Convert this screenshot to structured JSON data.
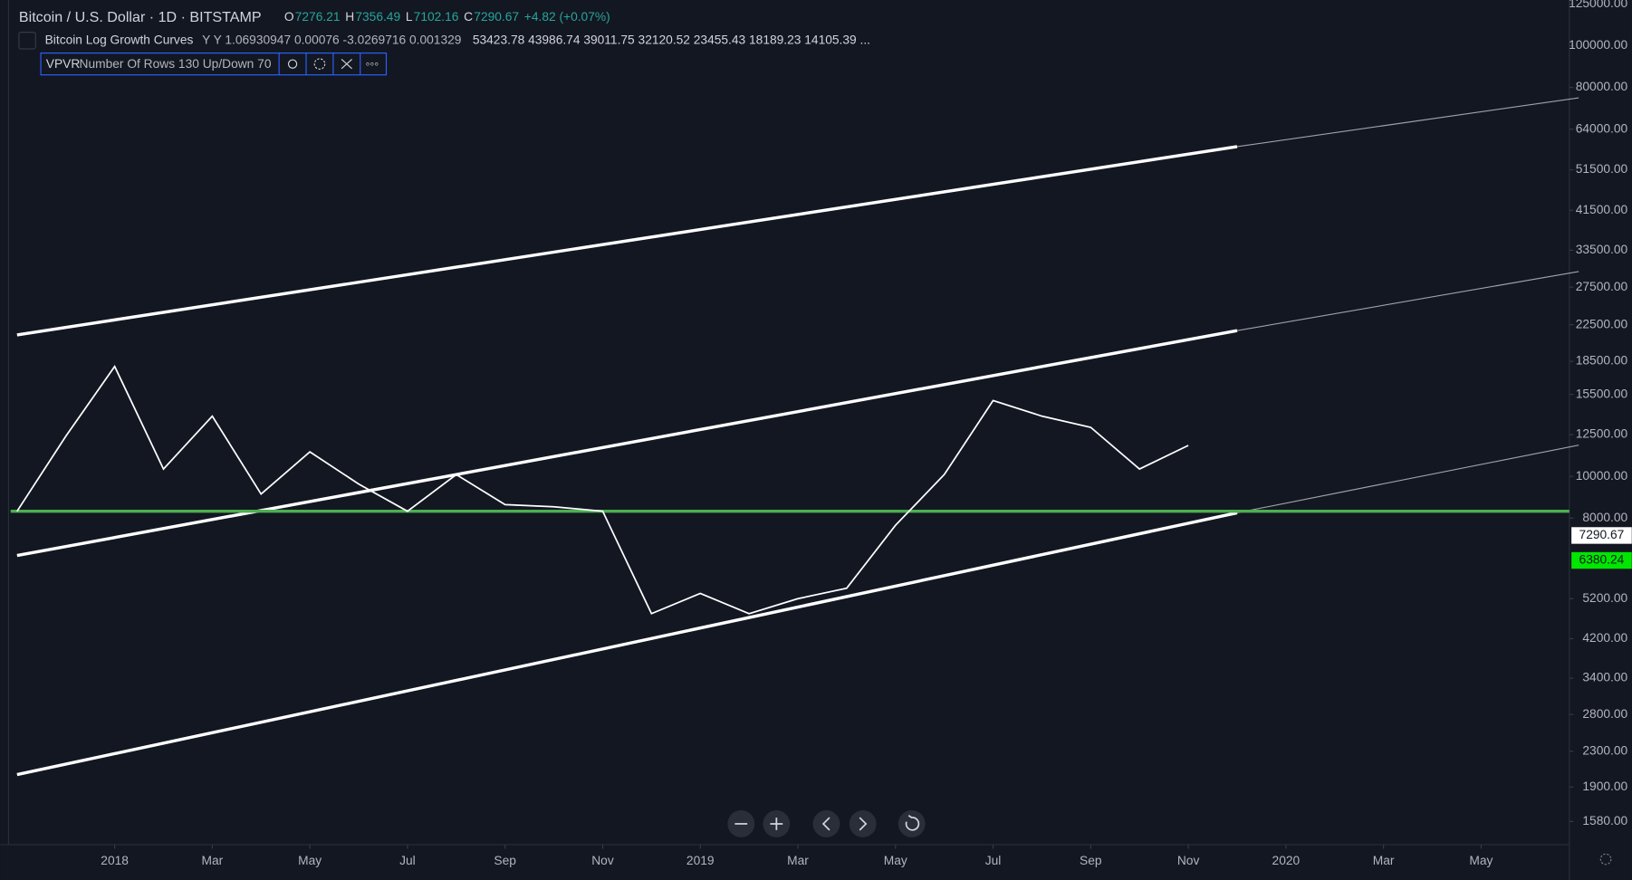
{
  "chart_data": {
    "type": "line",
    "title": "Bitcoin / U.S. Dollar · 1D · BITSTAMP",
    "ohlc": [
      {
        "label": "O",
        "value": "7276.21"
      },
      {
        "label": "H",
        "value": "7356.49"
      },
      {
        "label": "L",
        "value": "7102.16"
      },
      {
        "label": "C",
        "value": "7290.67"
      }
    ],
    "change": "+4.82 (+0.07%)",
    "indicator": {
      "name": "Bitcoin Log Growth Curves",
      "params": "Y Y 1.06930947 0.00076 -3.0269716 0.001329",
      "values": "53423.78 43986.74 39011.75 32120.52 23455.43 18189.23 14105.39 ..."
    },
    "vpvr": {
      "name": "VPVR",
      "params": "Number Of Rows 130 Up/Down 70"
    },
    "log_scale": true,
    "x": [
      "2017-11",
      "2017-12",
      "2018-01",
      "2018-02",
      "2018-03",
      "2018-04",
      "2018-05",
      "2018-06",
      "2018-07",
      "2018-08",
      "2018-09",
      "2018-10",
      "2018-11",
      "2018-12",
      "2019-01",
      "2019-02",
      "2019-03",
      "2019-04",
      "2019-05",
      "2019-06",
      "2019-07",
      "2019-08",
      "2019-09",
      "2019-10",
      "2019-11"
    ],
    "series": [
      {
        "color": "#ffffff",
        "values": [
          8300,
          12400,
          18000,
          10400,
          13800,
          9100,
          11400,
          9600,
          8300,
          10100,
          8600,
          8500,
          8300,
          4800,
          5350,
          4800,
          5200,
          5500,
          7700,
          10100,
          15000,
          13800,
          13000,
          10400,
          11800
        ]
      }
    ],
    "curves": [
      {
        "x": [
          "2017-11",
          "2019-12",
          "2020-07"
        ],
        "values": [
          21300,
          58300,
          75700
        ],
        "color": "#ffffff"
      },
      {
        "x": [
          "2017-11",
          "2019-12",
          "2020-07"
        ],
        "values": [
          6550,
          21800,
          29900
        ],
        "color": "#ffffff"
      },
      {
        "x": [
          "2017-11",
          "2019-12",
          "2020-07"
        ],
        "values": [
          2030,
          8230,
          11820
        ],
        "color": "#ffffff"
      }
    ],
    "hline": {
      "value": 8300,
      "color": "#4caf50"
    },
    "price_labels": [
      {
        "value": 7290.67,
        "label": "7290.67",
        "color": "#ffffff"
      },
      {
        "value": 6380.24,
        "label": "6380.24",
        "color": "#00e600"
      }
    ],
    "ylim": [
      1396,
      127700
    ],
    "yticks": [
      {
        "value": 125000,
        "label": "125000.00"
      },
      {
        "value": 100000,
        "label": "100000.00"
      },
      {
        "value": 80000,
        "label": "80000.00"
      },
      {
        "value": 64000,
        "label": "64000.00"
      },
      {
        "value": 51500,
        "label": "51500.00"
      },
      {
        "value": 41500,
        "label": "41500.00"
      },
      {
        "value": 33500,
        "label": "33500.00"
      },
      {
        "value": 27500,
        "label": "27500.00"
      },
      {
        "value": 22500,
        "label": "22500.00"
      },
      {
        "value": 18500,
        "label": "18500.00"
      },
      {
        "value": 15500,
        "label": "15500.00"
      },
      {
        "value": 12500,
        "label": "12500.00"
      },
      {
        "value": 10000,
        "label": "10000.00"
      },
      {
        "value": 8000,
        "label": "8000.00"
      },
      {
        "value": 5200,
        "label": "5200.00"
      },
      {
        "value": 4200,
        "label": "4200.00"
      },
      {
        "value": 3400,
        "label": "3400.00"
      },
      {
        "value": 2800,
        "label": "2800.00"
      },
      {
        "value": 2300,
        "label": "2300.00"
      },
      {
        "value": 1900,
        "label": "1900.00"
      },
      {
        "value": 1580,
        "label": "1580.00"
      }
    ],
    "xticks": [
      {
        "value": "2018-01",
        "label": "2018"
      },
      {
        "value": "2018-03",
        "label": "Mar"
      },
      {
        "value": "2018-05",
        "label": "May"
      },
      {
        "value": "2018-07",
        "label": "Jul"
      },
      {
        "value": "2018-09",
        "label": "Sep"
      },
      {
        "value": "2018-11",
        "label": "Nov"
      },
      {
        "value": "2019-01",
        "label": "2019"
      },
      {
        "value": "2019-03",
        "label": "Mar"
      },
      {
        "value": "2019-05",
        "label": "May"
      },
      {
        "value": "2019-07",
        "label": "Jul"
      },
      {
        "value": "2019-09",
        "label": "Sep"
      },
      {
        "value": "2019-11",
        "label": "Nov"
      },
      {
        "value": "2020-01",
        "label": "2020"
      },
      {
        "value": "2020-03",
        "label": "Mar"
      },
      {
        "value": "2020-05",
        "label": "May"
      }
    ]
  }
}
